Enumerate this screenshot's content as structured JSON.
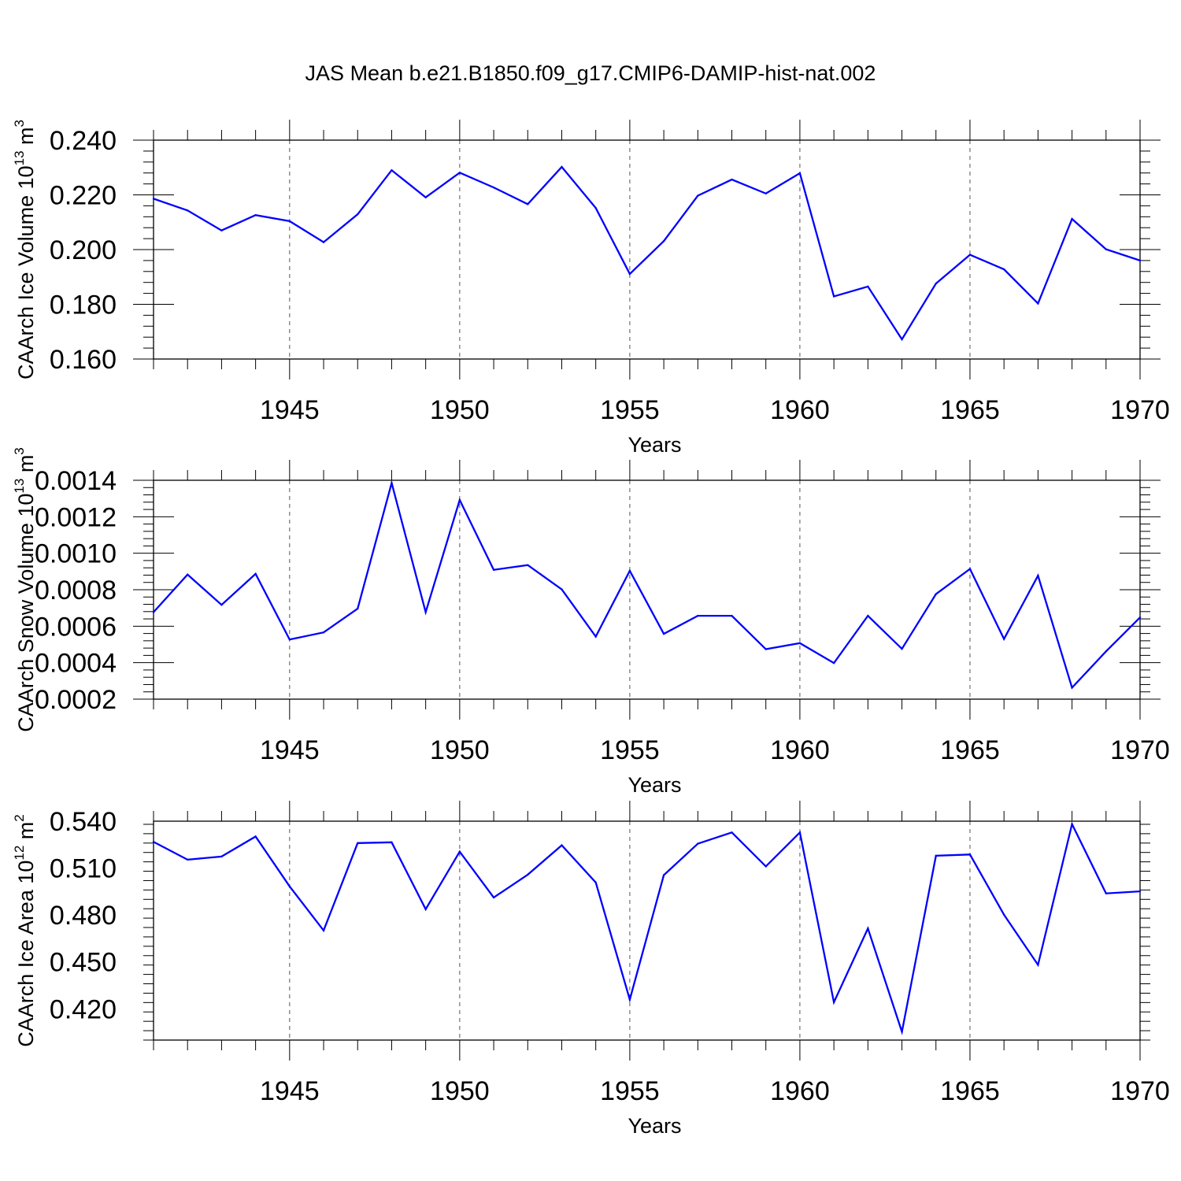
{
  "title": "JAS Mean b.e21.B1850.f09_g17.CMIP6-DAMIP-hist-nat.002",
  "chart_data": [
    {
      "type": "line",
      "xlabel": "Years",
      "ylabel": {
        "prefix": "CAArch Ice Volume 10",
        "exp": "13",
        "unit": " m",
        "unit_exp": "3"
      },
      "xlim": [
        1941,
        1970
      ],
      "ylim": [
        0.16,
        0.24
      ],
      "yticks": [
        "0.160",
        "0.180",
        "0.200",
        "0.220",
        "0.240"
      ],
      "yticks_values": [
        0.16,
        0.18,
        0.2,
        0.22,
        0.24
      ],
      "xticks": [
        "1945",
        "1950",
        "1955",
        "1960",
        "1965",
        "1970"
      ],
      "xticks_values": [
        1945,
        1950,
        1955,
        1960,
        1965,
        1970
      ],
      "grid_x": true,
      "series": [
        {
          "name": "CAArch Ice Volume",
          "color": "#0000ff",
          "x": [
            1941,
            1942,
            1943,
            1944,
            1945,
            1946,
            1947,
            1948,
            1949,
            1950,
            1951,
            1952,
            1953,
            1954,
            1955,
            1956,
            1957,
            1958,
            1959,
            1960,
            1961,
            1962,
            1963,
            1964,
            1965,
            1966,
            1967,
            1968,
            1969,
            1970
          ],
          "values": [
            0.2186,
            0.2143,
            0.207,
            0.2126,
            0.2104,
            0.2027,
            0.2129,
            0.229,
            0.2191,
            0.2281,
            0.2227,
            0.2166,
            0.2302,
            0.2152,
            0.1911,
            0.2031,
            0.2197,
            0.2256,
            0.2205,
            0.2279,
            0.1829,
            0.1865,
            0.1672,
            0.1876,
            0.1981,
            0.1928,
            0.1803,
            0.2112,
            0.2001,
            0.196
          ]
        }
      ]
    },
    {
      "type": "line",
      "xlabel": "Years",
      "ylabel": {
        "prefix": "CAArch Snow Volume 10",
        "exp": "13",
        "unit": " m",
        "unit_exp": "3"
      },
      "xlim": [
        1941,
        1970
      ],
      "ylim": [
        0.0002,
        0.0014
      ],
      "yticks": [
        "0.0002",
        "0.0004",
        "0.0006",
        "0.0008",
        "0.0010",
        "0.0012",
        "0.0014"
      ],
      "yticks_values": [
        0.0002,
        0.0004,
        0.0006,
        0.0008,
        0.001,
        0.0012,
        0.0014
      ],
      "xticks": [
        "1945",
        "1950",
        "1955",
        "1960",
        "1965",
        "1970"
      ],
      "xticks_values": [
        1945,
        1950,
        1955,
        1960,
        1965,
        1970
      ],
      "grid_x": true,
      "series": [
        {
          "name": "CAArch Snow Volume",
          "color": "#0000ff",
          "x": [
            1941,
            1942,
            1943,
            1944,
            1945,
            1946,
            1947,
            1948,
            1949,
            1950,
            1951,
            1952,
            1953,
            1954,
            1955,
            1956,
            1957,
            1958,
            1959,
            1960,
            1961,
            1962,
            1963,
            1964,
            1965,
            1966,
            1967,
            1968,
            1969,
            1970
          ],
          "values": [
            0.000677,
            0.000883,
            0.000717,
            0.000887,
            0.000527,
            0.000566,
            0.000696,
            0.001385,
            0.000677,
            0.001292,
            0.000909,
            0.000935,
            0.000802,
            0.000543,
            0.000904,
            0.000558,
            0.000657,
            0.000657,
            0.000474,
            0.000507,
            0.000398,
            0.000657,
            0.000476,
            0.000776,
            0.000914,
            0.00053,
            0.000877,
            0.000263,
            0.000462,
            0.000648
          ]
        }
      ]
    },
    {
      "type": "line",
      "xlabel": "Years",
      "ylabel": {
        "prefix": "CAArch Ice Area 10",
        "exp": "12",
        "unit": " m",
        "unit_exp": "2"
      },
      "xlim": [
        1941,
        1970
      ],
      "ylim": [
        0.4,
        0.54
      ],
      "yticks": [
        "0.420",
        "0.450",
        "0.480",
        "0.510",
        "0.540"
      ],
      "yticks_values": [
        0.42,
        0.45,
        0.48,
        0.51,
        0.54
      ],
      "xticks": [
        "1945",
        "1950",
        "1955",
        "1960",
        "1965",
        "1970"
      ],
      "xticks_values": [
        1945,
        1950,
        1955,
        1960,
        1965,
        1970
      ],
      "grid_x": true,
      "series": [
        {
          "name": "CAArch Ice Area",
          "color": "#0000ff",
          "x": [
            1941,
            1942,
            1943,
            1944,
            1945,
            1946,
            1947,
            1948,
            1949,
            1950,
            1951,
            1952,
            1953,
            1954,
            1955,
            1956,
            1957,
            1958,
            1959,
            1960,
            1961,
            1962,
            1963,
            1964,
            1965,
            1966,
            1967,
            1968,
            1969,
            1970
          ],
          "values": [
            0.5268,
            0.5154,
            0.5174,
            0.5302,
            0.4983,
            0.4701,
            0.526,
            0.5265,
            0.4837,
            0.5205,
            0.4912,
            0.5058,
            0.5246,
            0.5008,
            0.4259,
            0.5055,
            0.5256,
            0.5328,
            0.5111,
            0.5328,
            0.4242,
            0.4714,
            0.4053,
            0.5179,
            0.5187,
            0.4802,
            0.4481,
            0.5381,
            0.4938,
            0.4951
          ]
        }
      ]
    }
  ]
}
